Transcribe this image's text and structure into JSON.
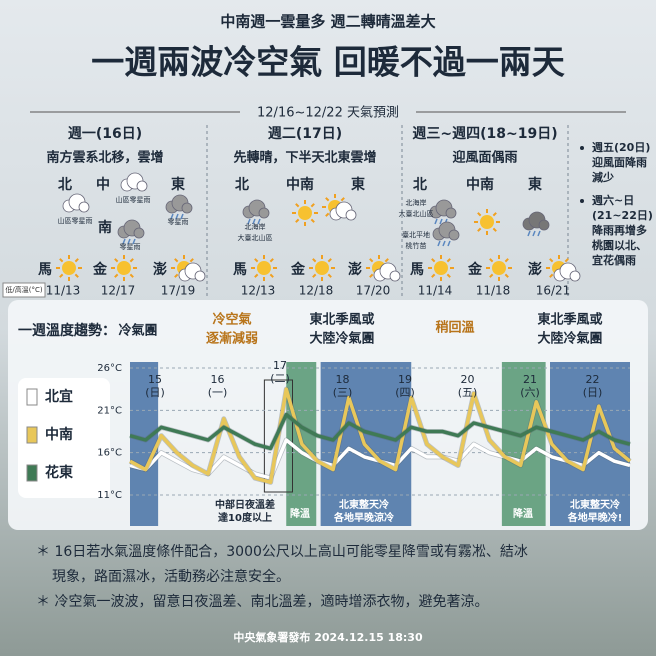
{
  "header": {
    "subtitle": "中南週一雲量多  週二轉晴溫差大",
    "title": "一週兩波冷空氣  回暖不過一兩天",
    "period": "12/16~12/22 天氣預測"
  },
  "forecast": [
    {
      "day": "週一(16日)",
      "summary": "南方雲系北移，雲增",
      "regions": [
        {
          "name": "北",
          "notes": [
            "山區零星雨"
          ]
        },
        {
          "name": "中",
          "notes": [
            "山區零星雨"
          ]
        },
        {
          "name": "東",
          "notes": [
            "零星雨"
          ]
        },
        {
          "name": "南",
          "notes": [
            "零星雨"
          ]
        }
      ],
      "islands": [
        {
          "name": "馬",
          "temps": "11/13"
        },
        {
          "name": "金",
          "temps": "12/17"
        },
        {
          "name": "澎",
          "temps": "17/19"
        }
      ]
    },
    {
      "day": "週二(17日)",
      "summary": "先轉晴，下半天北東雲增",
      "regions": [
        {
          "name": "北",
          "notes": [
            "北海岸",
            "大臺北山區"
          ]
        },
        {
          "name": "中南",
          "notes": []
        },
        {
          "name": "東",
          "notes": []
        }
      ],
      "islands": [
        {
          "name": "馬",
          "temps": "12/13"
        },
        {
          "name": "金",
          "temps": "12/18"
        },
        {
          "name": "澎",
          "temps": "17/20"
        }
      ]
    },
    {
      "day": "週三~週四(18~19日)",
      "summary": "迎風面偶雨",
      "regions": [
        {
          "name": "北",
          "notes": [
            "北海岸",
            "大臺北山區",
            "臺北平地",
            "桃竹苗"
          ]
        },
        {
          "name": "中南",
          "notes": []
        },
        {
          "name": "東",
          "notes": []
        }
      ],
      "islands": [
        {
          "name": "馬",
          "temps": "11/14"
        },
        {
          "name": "金",
          "temps": "11/18"
        },
        {
          "name": "澎",
          "temps": "16/21"
        }
      ]
    }
  ],
  "outlook": [
    {
      "head": "週五(20日)",
      "lines": [
        "迎風面降雨",
        "減少"
      ]
    },
    {
      "head": "週六~日",
      "lines": [
        "(21~22日)",
        "降雨再增多",
        "桃園以北、",
        "宜花偶雨"
      ]
    }
  ],
  "temp_key": "低/高溫(°C)",
  "chart_data": {
    "type": "line",
    "title": "一週溫度趨勢：",
    "phases": [
      {
        "lines": [
          "冷氣團"
        ]
      },
      {
        "lines": [
          "冷空氣",
          "逐漸減弱"
        ]
      },
      {
        "lines": [
          "東北季風或",
          "大陸冷氣團"
        ]
      },
      {
        "lines": [
          "稍回溫"
        ]
      },
      {
        "lines": [
          "東北季風或",
          "大陸冷氣團"
        ]
      }
    ],
    "annotations": [
      {
        "lines": [
          "中部日夜溫差",
          "達10度以上"
        ]
      },
      {
        "lines": [
          "降溫"
        ]
      },
      {
        "lines": [
          "北東整天冷",
          "各地早晚涼冷"
        ]
      },
      {
        "lines": [
          "降溫"
        ]
      },
      {
        "lines": [
          "北東整天冷",
          "各地早晚冷!"
        ]
      }
    ],
    "x": [
      15,
      15.25,
      15.5,
      15.75,
      16,
      16.25,
      16.5,
      16.75,
      17,
      17.25,
      17.5,
      17.75,
      18,
      18.25,
      18.5,
      18.75,
      19,
      19.25,
      19.5,
      19.75,
      20,
      20.25,
      20.5,
      20.75,
      21,
      21.25,
      21.5,
      21.75,
      22,
      22.25,
      22.5,
      22.75,
      23
    ],
    "xlim": [
      15,
      23
    ],
    "xticks": [
      {
        "value": 15.4,
        "label": "15",
        "weekday": "(日)"
      },
      {
        "value": 16.4,
        "label": "16",
        "weekday": "(一)"
      },
      {
        "value": 17.4,
        "label": "17",
        "weekday": "(二)"
      },
      {
        "value": 18.4,
        "label": "18",
        "weekday": "(三)"
      },
      {
        "value": 19.4,
        "label": "19",
        "weekday": "(四)"
      },
      {
        "value": 20.4,
        "label": "20",
        "weekday": "(五)"
      },
      {
        "value": 21.4,
        "label": "21",
        "weekday": "(六)"
      },
      {
        "value": 22.4,
        "label": "22",
        "weekday": "(日)"
      }
    ],
    "ylim": [
      9,
      28
    ],
    "yticks": [
      {
        "value": 11,
        "label": "11°C"
      },
      {
        "value": 16,
        "label": "16°C"
      },
      {
        "value": 21,
        "label": "21°C"
      },
      {
        "value": 26,
        "label": "26°C"
      }
    ],
    "grid": true,
    "series": [
      {
        "name": "北宜",
        "color": "#ffffff",
        "values": [
          14.5,
          14,
          16,
          15,
          14,
          13.5,
          15.5,
          14.5,
          13.5,
          13,
          17.5,
          16,
          15,
          14.5,
          16.5,
          15.5,
          15,
          14.5,
          16.5,
          15.5,
          15.5,
          15,
          17,
          16,
          15.5,
          15,
          16.5,
          15.5,
          15,
          14.5,
          16,
          15,
          14.5
        ]
      },
      {
        "name": "中南",
        "color": "#e8c75a",
        "values": [
          15,
          14,
          18,
          16,
          14.5,
          13.5,
          20,
          15.5,
          13,
          12.5,
          23.5,
          17,
          15,
          14,
          22.5,
          17,
          15,
          14,
          22.5,
          17,
          15.5,
          14.5,
          23,
          17.5,
          15.5,
          14.5,
          22,
          17,
          15,
          14,
          21.5,
          16.5,
          15
        ]
      },
      {
        "name": "花東",
        "color": "#3f7a55",
        "values": [
          18,
          17.5,
          19,
          18.5,
          18,
          17.5,
          19,
          18,
          17,
          16.5,
          20.5,
          19,
          18,
          17.5,
          19.5,
          18.5,
          18,
          17.5,
          19,
          18.5,
          18.5,
          18,
          19.5,
          19,
          18.5,
          18,
          19,
          18.5,
          18,
          17.5,
          18.5,
          17.5,
          17
        ]
      }
    ]
  },
  "notes": [
    {
      "lines": [
        "＊ 16日若水氣溫度條件配合，3000公尺以上高山可能零星降雪或有霧凇、結冰",
        "現象，路面濕冰，活動務必注意安全。"
      ]
    },
    {
      "lines": [
        "＊ 冷空氣一波波，留意日夜溫差、南北溫差，適時增添衣物，避免著涼。"
      ]
    }
  ],
  "footer": "中央氣象署發布 2024.12.15 18:30"
}
